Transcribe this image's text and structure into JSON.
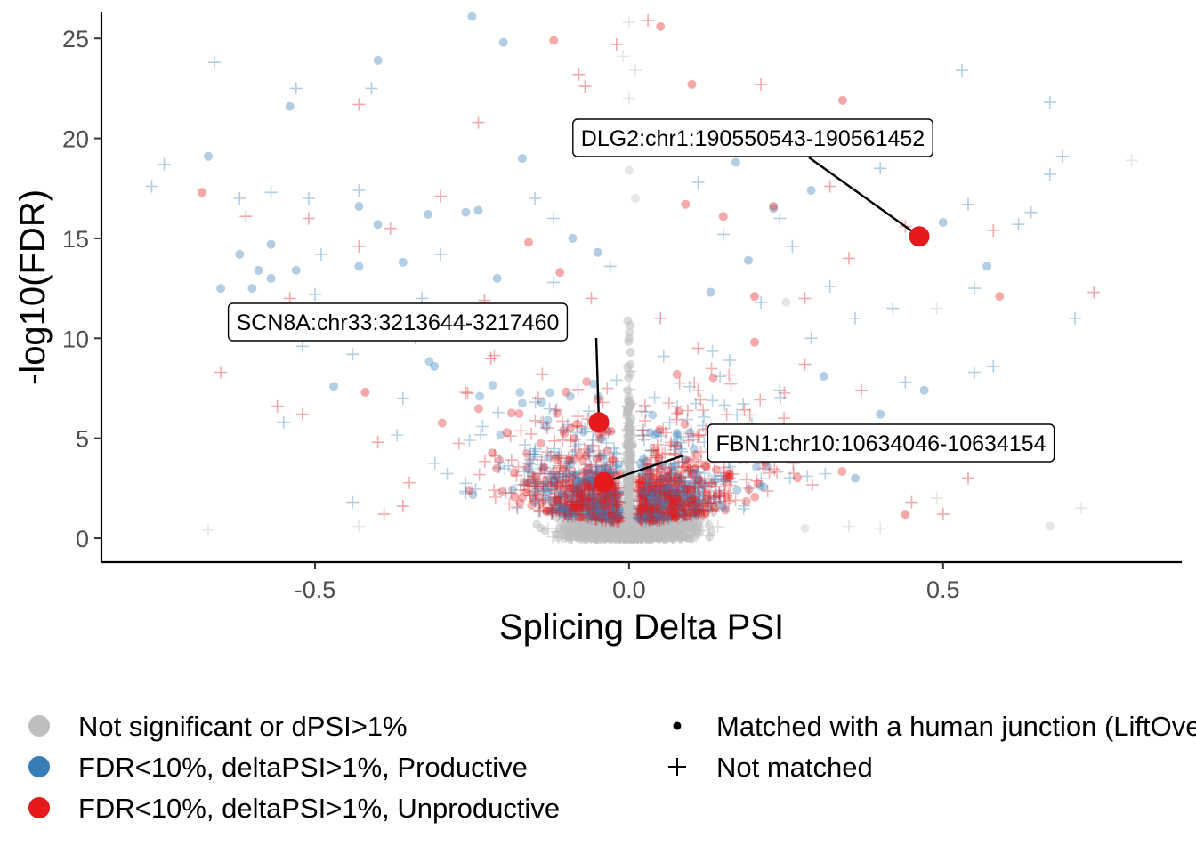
{
  "chart_data": {
    "type": "scatter",
    "xlabel": "Splicing Delta PSI",
    "ylabel": "-log10(FDR)",
    "xlim": [
      -0.84,
      0.88
    ],
    "ylim": [
      -1.2,
      26.3
    ],
    "x_ticks": [
      {
        "value": -0.5,
        "label": "-0.5"
      },
      {
        "value": 0.0,
        "label": "0.0"
      },
      {
        "value": 0.5,
        "label": "0.5"
      }
    ],
    "y_ticks": [
      {
        "value": 0,
        "label": "0"
      },
      {
        "value": 5,
        "label": "5"
      },
      {
        "value": 10,
        "label": "10"
      },
      {
        "value": 15,
        "label": "15"
      },
      {
        "value": 20,
        "label": "20"
      },
      {
        "value": 25,
        "label": "25"
      }
    ],
    "grid": false,
    "legend_position": "bottom",
    "colors": {
      "not_significant": "#bebebe",
      "productive": "#377eb8",
      "unproductive": "#e41a1c"
    },
    "legend_color": [
      {
        "key": "not_significant",
        "label": "Not significant or dPSI>1%"
      },
      {
        "key": "productive",
        "label": "FDR<10%, deltaPSI>1%, Productive"
      },
      {
        "key": "unproductive",
        "label": "FDR<10%, deltaPSI>1%, Unproductive"
      }
    ],
    "legend_shape": [
      {
        "key": "matched",
        "label": "Matched with a human junction (LiftOver)"
      },
      {
        "key": "not_matched",
        "label": "Not matched"
      }
    ],
    "highlighted": [
      {
        "label": "DLG2:chr1:190550543-190561452",
        "x": 0.462,
        "y": 15.1
      },
      {
        "label": "SCN8A:chr33:3213644-3217460",
        "x": -0.048,
        "y": 5.8
      },
      {
        "label": "FBN1:chr10:10634046-10634154",
        "x": -0.04,
        "y": 2.8
      }
    ],
    "points": [
      {
        "x": -0.25,
        "y": 26.1,
        "cls": "productive",
        "m": 1
      },
      {
        "x": -0.2,
        "y": 24.8,
        "cls": "productive",
        "m": 1
      },
      {
        "x": -0.4,
        "y": 23.9,
        "cls": "productive",
        "m": 1
      },
      {
        "x": -0.66,
        "y": 23.8,
        "cls": "productive",
        "m": 0
      },
      {
        "x": -0.53,
        "y": 22.5,
        "cls": "productive",
        "m": 0
      },
      {
        "x": -0.41,
        "y": 22.5,
        "cls": "productive",
        "m": 0
      },
      {
        "x": -0.54,
        "y": 21.6,
        "cls": "productive",
        "m": 1
      },
      {
        "x": -0.76,
        "y": 17.6,
        "cls": "productive",
        "m": 0
      },
      {
        "x": -0.74,
        "y": 18.7,
        "cls": "productive",
        "m": 0
      },
      {
        "x": -0.67,
        "y": 19.1,
        "cls": "productive",
        "m": 1
      },
      {
        "x": -0.62,
        "y": 17.0,
        "cls": "productive",
        "m": 0
      },
      {
        "x": -0.57,
        "y": 17.3,
        "cls": "productive",
        "m": 0
      },
      {
        "x": -0.51,
        "y": 17.0,
        "cls": "productive",
        "m": 0
      },
      {
        "x": -0.43,
        "y": 17.4,
        "cls": "productive",
        "m": 0
      },
      {
        "x": -0.43,
        "y": 16.6,
        "cls": "productive",
        "m": 1
      },
      {
        "x": -0.4,
        "y": 15.7,
        "cls": "productive",
        "m": 1
      },
      {
        "x": -0.32,
        "y": 16.2,
        "cls": "productive",
        "m": 1
      },
      {
        "x": -0.26,
        "y": 16.3,
        "cls": "productive",
        "m": 1
      },
      {
        "x": -0.24,
        "y": 16.4,
        "cls": "productive",
        "m": 1
      },
      {
        "x": -0.17,
        "y": 19.0,
        "cls": "productive",
        "m": 1
      },
      {
        "x": -0.57,
        "y": 14.7,
        "cls": "productive",
        "m": 1
      },
      {
        "x": -0.62,
        "y": 14.2,
        "cls": "productive",
        "m": 1
      },
      {
        "x": -0.59,
        "y": 13.4,
        "cls": "productive",
        "m": 1
      },
      {
        "x": -0.53,
        "y": 13.4,
        "cls": "productive",
        "m": 1
      },
      {
        "x": -0.49,
        "y": 14.2,
        "cls": "productive",
        "m": 0
      },
      {
        "x": -0.43,
        "y": 13.6,
        "cls": "productive",
        "m": 1
      },
      {
        "x": -0.36,
        "y": 13.8,
        "cls": "productive",
        "m": 1
      },
      {
        "x": -0.3,
        "y": 14.2,
        "cls": "productive",
        "m": 0
      },
      {
        "x": -0.65,
        "y": 12.5,
        "cls": "productive",
        "m": 1
      },
      {
        "x": -0.6,
        "y": 12.5,
        "cls": "productive",
        "m": 1
      },
      {
        "x": -0.57,
        "y": 13.0,
        "cls": "productive",
        "m": 1
      },
      {
        "x": -0.5,
        "y": 12.2,
        "cls": "productive",
        "m": 0
      },
      {
        "x": -0.21,
        "y": 13.0,
        "cls": "productive",
        "m": 1
      },
      {
        "x": -0.19,
        "y": 11.5,
        "cls": "productive",
        "m": 1
      },
      {
        "x": -0.52,
        "y": 9.6,
        "cls": "productive",
        "m": 0
      },
      {
        "x": -0.44,
        "y": 9.2,
        "cls": "productive",
        "m": 0
      },
      {
        "x": -0.47,
        "y": 7.6,
        "cls": "productive",
        "m": 1
      },
      {
        "x": -0.55,
        "y": 5.8,
        "cls": "productive",
        "m": 0
      },
      {
        "x": 0.17,
        "y": 18.8,
        "cls": "productive",
        "m": 1
      },
      {
        "x": 0.23,
        "y": 16.5,
        "cls": "productive",
        "m": 1
      },
      {
        "x": 0.29,
        "y": 17.4,
        "cls": "productive",
        "m": 1
      },
      {
        "x": 0.4,
        "y": 18.5,
        "cls": "productive",
        "m": 0
      },
      {
        "x": 0.53,
        "y": 23.4,
        "cls": "productive",
        "m": 0
      },
      {
        "x": 0.67,
        "y": 21.8,
        "cls": "productive",
        "m": 0
      },
      {
        "x": 0.69,
        "y": 19.1,
        "cls": "productive",
        "m": 0
      },
      {
        "x": 0.67,
        "y": 18.2,
        "cls": "productive",
        "m": 0
      },
      {
        "x": 0.5,
        "y": 15.8,
        "cls": "productive",
        "m": 1
      },
      {
        "x": 0.54,
        "y": 16.7,
        "cls": "productive",
        "m": 0
      },
      {
        "x": 0.64,
        "y": 16.3,
        "cls": "productive",
        "m": 0
      },
      {
        "x": 0.62,
        "y": 15.7,
        "cls": "productive",
        "m": 0
      },
      {
        "x": 0.55,
        "y": 12.5,
        "cls": "productive",
        "m": 0
      },
      {
        "x": 0.57,
        "y": 13.6,
        "cls": "productive",
        "m": 1
      },
      {
        "x": 0.42,
        "y": 11.5,
        "cls": "productive",
        "m": 0
      },
      {
        "x": 0.36,
        "y": 11.0,
        "cls": "productive",
        "m": 0
      },
      {
        "x": 0.32,
        "y": 12.6,
        "cls": "productive",
        "m": 0
      },
      {
        "x": 0.71,
        "y": 11.0,
        "cls": "productive",
        "m": 0
      },
      {
        "x": 0.55,
        "y": 8.3,
        "cls": "productive",
        "m": 0
      },
      {
        "x": 0.58,
        "y": 8.6,
        "cls": "productive",
        "m": 0
      },
      {
        "x": 0.47,
        "y": 7.4,
        "cls": "productive",
        "m": 1
      },
      {
        "x": 0.4,
        "y": 6.2,
        "cls": "productive",
        "m": 1
      },
      {
        "x": 0.36,
        "y": 3.0,
        "cls": "productive",
        "m": 1
      },
      {
        "x": 0.44,
        "y": 7.8,
        "cls": "productive",
        "m": 0
      },
      {
        "x": 0.24,
        "y": 16.0,
        "cls": "productive",
        "m": 0
      },
      {
        "x": 0.11,
        "y": 17.8,
        "cls": "productive",
        "m": 0
      },
      {
        "x": -0.44,
        "y": 1.8,
        "cls": "productive",
        "m": 0
      },
      {
        "x": -0.09,
        "y": 15.0,
        "cls": "productive",
        "m": 1
      },
      {
        "x": -0.05,
        "y": 14.3,
        "cls": "productive",
        "m": 1
      },
      {
        "x": -0.03,
        "y": 13.6,
        "cls": "productive",
        "m": 0
      },
      {
        "x": -0.12,
        "y": 12.8,
        "cls": "productive",
        "m": 0
      },
      {
        "x": -0.15,
        "y": 17.0,
        "cls": "productive",
        "m": 0
      },
      {
        "x": -0.12,
        "y": 16.0,
        "cls": "productive",
        "m": 0
      },
      {
        "x": 0.19,
        "y": 13.9,
        "cls": "productive",
        "m": 1
      },
      {
        "x": 0.26,
        "y": 14.6,
        "cls": "productive",
        "m": 0
      },
      {
        "x": 0.15,
        "y": 15.2,
        "cls": "productive",
        "m": 0
      },
      {
        "x": 0.13,
        "y": 12.3,
        "cls": "productive",
        "m": 1
      },
      {
        "x": 0.21,
        "y": 11.8,
        "cls": "productive",
        "m": 0
      },
      {
        "x": 0.29,
        "y": 10.0,
        "cls": "productive",
        "m": 0
      },
      {
        "x": 0.31,
        "y": 8.1,
        "cls": "productive",
        "m": 1
      },
      {
        "x": -0.33,
        "y": 12.0,
        "cls": "productive",
        "m": 0
      },
      {
        "x": -0.28,
        "y": 10.6,
        "cls": "productive",
        "m": 0
      },
      {
        "x": -0.38,
        "y": 10.3,
        "cls": "productive",
        "m": 0
      },
      {
        "x": -0.31,
        "y": 8.6,
        "cls": "productive",
        "m": 1
      },
      {
        "x": -0.36,
        "y": 7.0,
        "cls": "productive",
        "m": 0
      },
      {
        "x": 0.24,
        "y": 7.4,
        "cls": "productive",
        "m": 0
      },
      {
        "x": 0.16,
        "y": 8.9,
        "cls": "productive",
        "m": 0
      },
      {
        "x": -0.12,
        "y": 24.9,
        "cls": "unproductive",
        "m": 1
      },
      {
        "x": -0.02,
        "y": 24.7,
        "cls": "unproductive",
        "m": 0
      },
      {
        "x": 0.05,
        "y": 25.6,
        "cls": "unproductive",
        "m": 1
      },
      {
        "x": -0.08,
        "y": 23.2,
        "cls": "unproductive",
        "m": 0
      },
      {
        "x": -0.07,
        "y": 22.6,
        "cls": "unproductive",
        "m": 0
      },
      {
        "x": 0.1,
        "y": 22.7,
        "cls": "unproductive",
        "m": 1
      },
      {
        "x": 0.21,
        "y": 22.7,
        "cls": "unproductive",
        "m": 0
      },
      {
        "x": 0.34,
        "y": 21.9,
        "cls": "unproductive",
        "m": 1
      },
      {
        "x": -0.43,
        "y": 21.7,
        "cls": "unproductive",
        "m": 0
      },
      {
        "x": -0.24,
        "y": 20.8,
        "cls": "unproductive",
        "m": 0
      },
      {
        "x": -0.68,
        "y": 17.3,
        "cls": "unproductive",
        "m": 1
      },
      {
        "x": -0.61,
        "y": 16.1,
        "cls": "unproductive",
        "m": 0
      },
      {
        "x": -0.51,
        "y": 16.0,
        "cls": "unproductive",
        "m": 0
      },
      {
        "x": -0.43,
        "y": 14.6,
        "cls": "unproductive",
        "m": 0
      },
      {
        "x": -0.38,
        "y": 15.5,
        "cls": "unproductive",
        "m": 0
      },
      {
        "x": -0.16,
        "y": 14.8,
        "cls": "unproductive",
        "m": 1
      },
      {
        "x": -0.11,
        "y": 13.3,
        "cls": "unproductive",
        "m": 1
      },
      {
        "x": -0.54,
        "y": 12.0,
        "cls": "unproductive",
        "m": 0
      },
      {
        "x": -0.46,
        "y": 11.0,
        "cls": "unproductive",
        "m": 0
      },
      {
        "x": -0.65,
        "y": 8.3,
        "cls": "unproductive",
        "m": 0
      },
      {
        "x": -0.56,
        "y": 6.6,
        "cls": "unproductive",
        "m": 0
      },
      {
        "x": -0.52,
        "y": 6.2,
        "cls": "unproductive",
        "m": 0
      },
      {
        "x": -0.42,
        "y": 7.3,
        "cls": "unproductive",
        "m": 1
      },
      {
        "x": -0.4,
        "y": 4.8,
        "cls": "unproductive",
        "m": 0
      },
      {
        "x": -0.39,
        "y": 1.2,
        "cls": "unproductive",
        "m": 0
      },
      {
        "x": -0.36,
        "y": 1.6,
        "cls": "unproductive",
        "m": 0
      },
      {
        "x": 0.09,
        "y": 20.5,
        "cls": "unproductive",
        "m": 0
      },
      {
        "x": 0.32,
        "y": 17.6,
        "cls": "unproductive",
        "m": 0
      },
      {
        "x": 0.23,
        "y": 16.6,
        "cls": "unproductive",
        "m": 1
      },
      {
        "x": 0.15,
        "y": 16.1,
        "cls": "unproductive",
        "m": 1
      },
      {
        "x": 0.35,
        "y": 14.0,
        "cls": "unproductive",
        "m": 0
      },
      {
        "x": 0.44,
        "y": 15.6,
        "cls": "unproductive",
        "m": 0
      },
      {
        "x": 0.58,
        "y": 15.4,
        "cls": "unproductive",
        "m": 0
      },
      {
        "x": 0.59,
        "y": 12.1,
        "cls": "unproductive",
        "m": 1
      },
      {
        "x": 0.74,
        "y": 12.3,
        "cls": "unproductive",
        "m": 0
      },
      {
        "x": 0.2,
        "y": 12.1,
        "cls": "unproductive",
        "m": 1
      },
      {
        "x": 0.28,
        "y": 12.0,
        "cls": "unproductive",
        "m": 0
      },
      {
        "x": 0.2,
        "y": 9.8,
        "cls": "unproductive",
        "m": 1
      },
      {
        "x": 0.54,
        "y": 3.0,
        "cls": "unproductive",
        "m": 0
      },
      {
        "x": 0.45,
        "y": 1.8,
        "cls": "unproductive",
        "m": 0
      },
      {
        "x": 0.5,
        "y": 1.2,
        "cls": "unproductive",
        "m": 0
      },
      {
        "x": 0.44,
        "y": 1.2,
        "cls": "unproductive",
        "m": 1
      },
      {
        "x": 0.6,
        "y": 4.7,
        "cls": "unproductive",
        "m": 0
      },
      {
        "x": 0.09,
        "y": 16.7,
        "cls": "unproductive",
        "m": 1
      },
      {
        "x": -0.3,
        "y": 17.1,
        "cls": "unproductive",
        "m": 0
      },
      {
        "x": -0.06,
        "y": 12.0,
        "cls": "unproductive",
        "m": 0
      },
      {
        "x": 0.05,
        "y": 11.0,
        "cls": "unproductive",
        "m": 0
      },
      {
        "x": -0.23,
        "y": 11.9,
        "cls": "unproductive",
        "m": 0
      },
      {
        "x": -0.22,
        "y": 9.0,
        "cls": "unproductive",
        "m": 0
      },
      {
        "x": 0.11,
        "y": 9.5,
        "cls": "unproductive",
        "m": 0
      },
      {
        "x": 0.28,
        "y": 8.7,
        "cls": "unproductive",
        "m": 0
      },
      {
        "x": -0.34,
        "y": 10.0,
        "cls": "unproductive",
        "m": 0
      },
      {
        "x": -0.26,
        "y": 7.3,
        "cls": "unproductive",
        "m": 0
      },
      {
        "x": 0.37,
        "y": 7.4,
        "cls": "unproductive",
        "m": 0
      },
      {
        "x": 0.33,
        "y": 5.2,
        "cls": "unproductive",
        "m": 0
      },
      {
        "x": 0.03,
        "y": 25.9,
        "cls": "unproductive",
        "m": 0
      },
      {
        "x": 0.0,
        "y": 25.8,
        "cls": "not_significant",
        "m": 0
      },
      {
        "x": -0.01,
        "y": 24.1,
        "cls": "not_significant",
        "m": 0
      },
      {
        "x": 0.01,
        "y": 23.4,
        "cls": "not_significant",
        "m": 0
      },
      {
        "x": 0.0,
        "y": 22.0,
        "cls": "not_significant",
        "m": 0
      },
      {
        "x": 0.0,
        "y": 20.5,
        "cls": "not_significant",
        "m": 1
      },
      {
        "x": 0.0,
        "y": 18.4,
        "cls": "not_significant",
        "m": 1
      },
      {
        "x": 0.01,
        "y": 17.0,
        "cls": "not_significant",
        "m": 1
      },
      {
        "x": 0.8,
        "y": 18.9,
        "cls": "not_significant",
        "m": 0
      },
      {
        "x": 0.49,
        "y": 11.5,
        "cls": "not_significant",
        "m": 0
      },
      {
        "x": 0.25,
        "y": 11.8,
        "cls": "not_significant",
        "m": 1
      },
      {
        "x": 0.72,
        "y": 1.5,
        "cls": "not_significant",
        "m": 0
      },
      {
        "x": 0.67,
        "y": 0.6,
        "cls": "not_significant",
        "m": 1
      },
      {
        "x": 0.49,
        "y": 2.0,
        "cls": "not_significant",
        "m": 0
      },
      {
        "x": -0.67,
        "y": 0.4,
        "cls": "not_significant",
        "m": 0
      },
      {
        "x": -0.43,
        "y": 0.6,
        "cls": "not_significant",
        "m": 0
      },
      {
        "x": 0.28,
        "y": 0.5,
        "cls": "not_significant",
        "m": 1
      },
      {
        "x": 0.35,
        "y": 0.6,
        "cls": "not_significant",
        "m": 0
      },
      {
        "x": 0.4,
        "y": 0.5,
        "cls": "not_significant",
        "m": 0
      }
    ]
  }
}
